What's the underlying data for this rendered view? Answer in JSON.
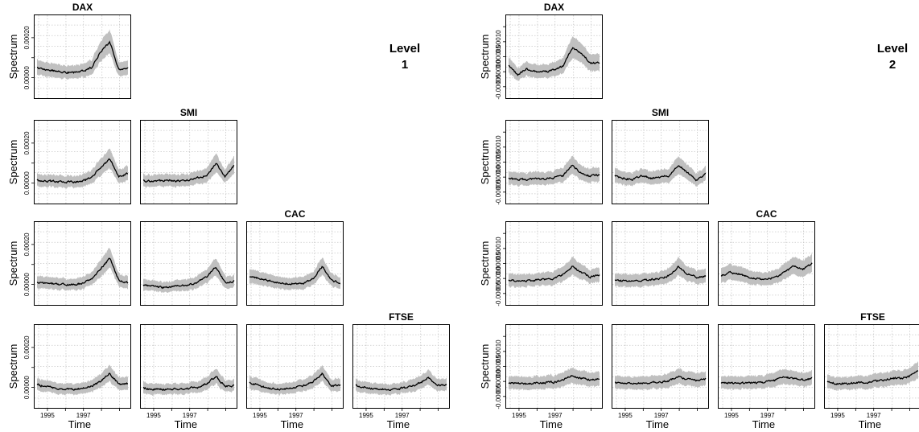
{
  "colors": {
    "band": "#c0c0c0",
    "line": "#000000",
    "grid": "#c8c8c8",
    "frame": "#000000"
  },
  "chart_data": {
    "type": "line",
    "layout": "lower-triangular matrix of spectrum panels (4 indices) for two wavelet levels",
    "x_ticks": [
      "1995",
      "1997"
    ],
    "xlabel": "Time",
    "ylabel": "Spectrum",
    "level_panels": [
      {
        "heading": [
          "Level",
          "1"
        ],
        "ylim": [
          -9e-05,
          0.0003
        ],
        "y_ticks": [
          "0.00000",
          "0.00020"
        ],
        "diag_labels": [
          "DAX",
          "SMI",
          "CAC",
          "FTSE"
        ],
        "panels": [
          [
            [
              5e-05,
              4e-05,
              3.5e-05,
              2.8e-05,
              2.4e-05,
              3.3e-05,
              5e-05,
              0.00013,
              0.00018,
              4e-05,
              4.5e-05
            ]
          ],
          [
            [
              1.5e-05,
              1e-05,
              8e-06,
              6e-06,
              5e-06,
              1.2e-05,
              3e-05,
              8e-05,
              0.00012,
              3e-05,
              5e-05
            ],
            [
              1e-05,
              8e-06,
              1e-05,
              1.5e-05,
              1e-05,
              1.5e-05,
              2.5e-05,
              4e-05,
              0.0001,
              3e-05,
              9e-05
            ]
          ],
          [
            [
              1.2e-05,
              5e-06,
              2e-06,
              0.0,
              -2e-06,
              8e-06,
              2.5e-05,
              8e-05,
              0.00013,
              2e-05,
              1e-05
            ],
            [
              -5e-06,
              -1e-05,
              -1.5e-05,
              -1.2e-05,
              -8e-06,
              -3e-06,
              1e-05,
              4e-05,
              9e-05,
              1e-05,
              1.5e-05
            ],
            [
              3.5e-05,
              3e-05,
              2e-05,
              1e-05,
              5e-06,
              3e-06,
              6e-06,
              3e-05,
              9e-05,
              2e-05,
              1e-05
            ]
          ],
          [
            [
              1.2e-05,
              5e-06,
              -5e-06,
              -1e-05,
              -1e-05,
              -5e-06,
              5e-06,
              3e-05,
              7e-05,
              1.5e-05,
              2e-05
            ],
            [
              -3e-06,
              -8e-06,
              -1e-05,
              -1e-05,
              -8e-06,
              -5e-06,
              0.0,
              2e-05,
              5.5e-05,
              5e-06,
              1e-05
            ],
            [
              2.5e-05,
              1e-05,
              -3e-06,
              -8e-06,
              -8e-06,
              0.0,
              1e-05,
              3e-05,
              7e-05,
              5e-06,
              1.5e-05
            ],
            [
              1e-05,
              0.0,
              -8e-06,
              -1e-05,
              -1e-05,
              -5e-06,
              5e-06,
              2e-05,
              5e-05,
              1e-05,
              1.5e-05
            ]
          ]
        ]
      },
      {
        "heading": [
          "Level",
          "2"
        ],
        "ylim": [
          -8e-05,
          0.00018
        ],
        "y_ticks": [
          "-0.00005",
          "0.00000",
          "0.00005",
          "0.00010"
        ],
        "diag_labels": [
          "DAX",
          "SMI",
          "CAC",
          "FTSE"
        ],
        "panels": [
          [
            [
              2e-05,
              -1e-05,
              1e-05,
              0.0,
              0.0,
              5e-06,
              2e-05,
              8e-05,
              6e-05,
              3e-05,
              3e-05
            ]
          ],
          [
            [
              -5e-06,
              -8e-06,
              -8e-06,
              -6e-06,
              -5e-06,
              -2e-06,
              5e-06,
              4e-05,
              1.2e-05,
              5e-06,
              8e-06
            ],
            [
              5e-06,
              -5e-06,
              -8e-06,
              5e-06,
              -5e-06,
              0.0,
              5e-06,
              4e-05,
              1.5e-05,
              -1e-05,
              1.2e-05
            ]
          ],
          [
            [
              -5e-06,
              -8e-06,
              -8e-06,
              -5e-06,
              -3e-06,
              0.0,
              1.5e-05,
              4e-05,
              2e-05,
              5e-06,
              1.2e-05
            ],
            [
              -5e-06,
              -8e-06,
              -8e-06,
              -6e-06,
              -4e-06,
              0.0,
              1e-05,
              4e-05,
              1.5e-05,
              5e-06,
              8e-06
            ],
            [
              1e-05,
              2e-05,
              1.5e-05,
              5e-06,
              0.0,
              -5e-06,
              5e-06,
              2e-05,
              4e-05,
              3e-05,
              5e-05
            ]
          ],
          [
            [
              -5e-06,
              -6e-06,
              -8e-06,
              -5e-06,
              -4e-06,
              -2e-06,
              5e-06,
              2e-05,
              1e-05,
              5e-06,
              1e-05
            ],
            [
              -5e-06,
              -7e-06,
              -8e-06,
              -6e-06,
              -4e-06,
              -2e-06,
              3e-06,
              1.5e-05,
              8e-06,
              4e-06,
              8e-06
            ],
            [
              -5e-06,
              -6e-06,
              -7e-06,
              -5e-06,
              -4e-06,
              -2e-06,
              4e-06,
              1.5e-05,
              1e-05,
              5e-06,
              1e-05
            ],
            [
              -2e-06,
              -6e-06,
              -8e-06,
              -6e-06,
              -4e-06,
              -2e-06,
              4e-06,
              1e-05,
              1e-05,
              1.5e-05,
              3.5e-05
            ]
          ]
        ]
      }
    ]
  }
}
